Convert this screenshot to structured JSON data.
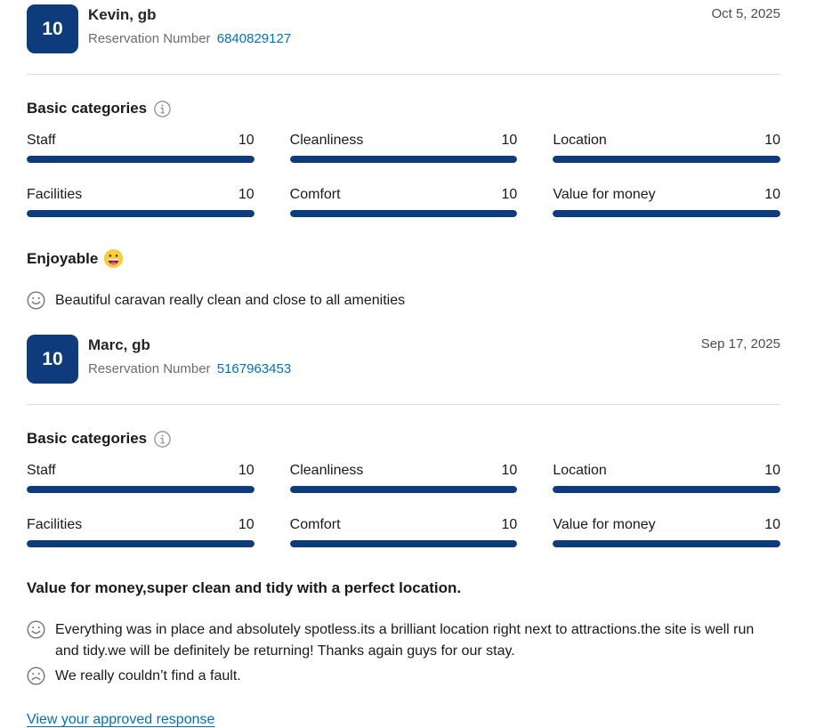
{
  "colors": {
    "navy": "#0d3b7c",
    "link": "#0071c2",
    "muted": "#6e6e6e",
    "divider": "#dcdcdc"
  },
  "shared": {
    "reservation_label": "Reservation Number",
    "basic_categories_title": "Basic categories",
    "icons": {
      "info": "info-icon",
      "positive": "smiley-face-icon",
      "negative": "sad-face-icon",
      "title_emoji": "grinning-face-emoji"
    }
  },
  "reviews": [
    {
      "score": "10",
      "guest_name": "Kevin, gb",
      "review_date": "Oct 5, 2025",
      "reservation_number": "6840829127",
      "categories": [
        {
          "label": "Staff",
          "value": "10",
          "bar_percent": 100
        },
        {
          "label": "Cleanliness",
          "value": "10",
          "bar_percent": 100
        },
        {
          "label": "Location",
          "value": "10",
          "bar_percent": 100
        },
        {
          "label": "Facilities",
          "value": "10",
          "bar_percent": 100
        },
        {
          "label": "Comfort",
          "value": "10",
          "bar_percent": 100
        },
        {
          "label": "Value for money",
          "value": "10",
          "bar_percent": 100
        }
      ],
      "review_title": "Enjoyable",
      "review_title_emoji": "😃",
      "positive_comment": "Beautiful caravan really clean and close to all amenities"
    },
    {
      "score": "10",
      "guest_name": "Marc, gb",
      "review_date": "Sep 17, 2025",
      "reservation_number": "5167963453",
      "categories": [
        {
          "label": "Staff",
          "value": "10",
          "bar_percent": 100
        },
        {
          "label": "Cleanliness",
          "value": "10",
          "bar_percent": 100
        },
        {
          "label": "Location",
          "value": "10",
          "bar_percent": 100
        },
        {
          "label": "Facilities",
          "value": "10",
          "bar_percent": 100
        },
        {
          "label": "Comfort",
          "value": "10",
          "bar_percent": 100
        },
        {
          "label": "Value for money",
          "value": "10",
          "bar_percent": 100
        }
      ],
      "review_title": "Value for money,super clean and tidy with a perfect location.",
      "positive_comment": "Everything was in place and absolutely spotless.its a brilliant location right next to attractions.the site is well run and tidy.we will be definitely be returning! Thanks again guys for our stay.",
      "negative_comment": "We really couldn’t find a fault.",
      "response_link_label": "View your approved response"
    }
  ]
}
